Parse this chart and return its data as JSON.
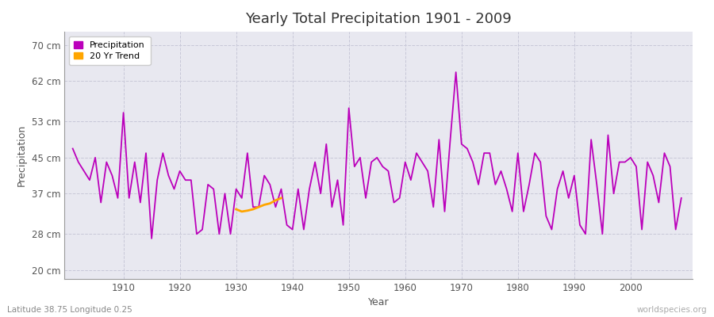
{
  "title": "Yearly Total Precipitation 1901 - 2009",
  "xlabel": "Year",
  "ylabel": "Precipitation",
  "subtitle": "Latitude 38.75 Longitude 0.25",
  "watermark": "worldspecies.org",
  "years": [
    1901,
    1902,
    1903,
    1904,
    1905,
    1906,
    1907,
    1908,
    1909,
    1910,
    1911,
    1912,
    1913,
    1914,
    1915,
    1916,
    1917,
    1918,
    1919,
    1920,
    1921,
    1922,
    1923,
    1924,
    1925,
    1926,
    1927,
    1928,
    1929,
    1930,
    1931,
    1932,
    1933,
    1934,
    1935,
    1936,
    1937,
    1938,
    1939,
    1940,
    1941,
    1942,
    1943,
    1944,
    1945,
    1946,
    1947,
    1948,
    1949,
    1950,
    1951,
    1952,
    1953,
    1954,
    1955,
    1956,
    1957,
    1958,
    1959,
    1960,
    1961,
    1962,
    1963,
    1964,
    1965,
    1966,
    1967,
    1968,
    1969,
    1970,
    1971,
    1972,
    1973,
    1974,
    1975,
    1976,
    1977,
    1978,
    1979,
    1980,
    1981,
    1982,
    1983,
    1984,
    1985,
    1986,
    1987,
    1988,
    1989,
    1990,
    1991,
    1992,
    1993,
    1994,
    1995,
    1996,
    1997,
    1998,
    1999,
    2000,
    2001,
    2002,
    2003,
    2004,
    2005,
    2006,
    2007,
    2008,
    2009
  ],
  "precipitation": [
    47,
    44,
    42,
    40,
    45,
    35,
    44,
    41,
    36,
    55,
    36,
    44,
    35,
    46,
    27,
    40,
    46,
    41,
    38,
    42,
    40,
    40,
    28,
    29,
    39,
    38,
    28,
    37,
    28,
    38,
    36,
    46,
    34,
    34,
    41,
    39,
    34,
    38,
    30,
    29,
    38,
    29,
    38,
    44,
    37,
    48,
    34,
    40,
    30,
    56,
    43,
    45,
    36,
    44,
    45,
    43,
    42,
    35,
    36,
    44,
    40,
    46,
    44,
    42,
    34,
    49,
    33,
    49,
    64,
    48,
    47,
    44,
    39,
    46,
    46,
    39,
    42,
    38,
    33,
    46,
    33,
    39,
    46,
    44,
    32,
    29,
    38,
    42,
    36,
    41,
    30,
    28,
    49,
    39,
    28,
    50,
    37,
    44,
    44,
    45,
    43,
    29,
    44,
    41,
    35,
    46,
    43,
    29,
    36
  ],
  "trend_years": [
    1930,
    1931,
    1932,
    1933,
    1934,
    1935,
    1936,
    1937,
    1938
  ],
  "trend_values": [
    33.5,
    33.0,
    33.2,
    33.5,
    34.0,
    34.5,
    34.8,
    35.5,
    36.0
  ],
  "precip_color": "#BB00BB",
  "trend_color": "#FFA500",
  "bg_color": "#DCDCE8",
  "plot_bg_color": "#E8E8F0",
  "grid_color": "#C8C8D8",
  "ytick_labels": [
    "20 cm",
    "28 cm",
    "37 cm",
    "45 cm",
    "53 cm",
    "62 cm",
    "70 cm"
  ],
  "ytick_values": [
    20,
    28,
    37,
    45,
    53,
    62,
    70
  ],
  "ylim": [
    18,
    73
  ],
  "xlim": [
    1899.5,
    2011
  ]
}
